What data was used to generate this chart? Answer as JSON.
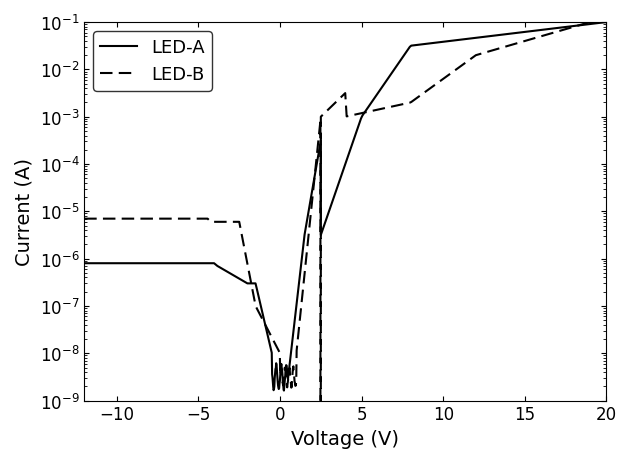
{
  "title": "",
  "xlabel": "Voltage (V)",
  "ylabel": "Current (A)",
  "xlim": [
    -12,
    20
  ],
  "ylim_log": [
    -9,
    -1
  ],
  "xlabel_fontsize": 14,
  "ylabel_fontsize": 14,
  "tick_fontsize": 12,
  "legend_fontsize": 13,
  "line_color": "black",
  "figsize": [
    6.32,
    4.64
  ],
  "dpi": 100
}
